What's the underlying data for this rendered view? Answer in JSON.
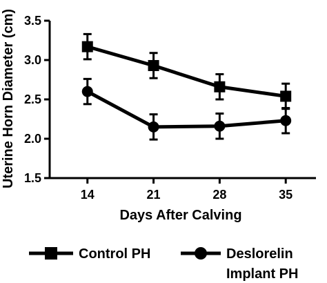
{
  "chart_data": {
    "type": "line",
    "x": [
      14,
      21,
      28,
      35
    ],
    "xlabel": "Days After Calving",
    "ylabel": "Uterine Horn Diameter (cm)",
    "ylim": [
      1.5,
      3.5
    ],
    "yticks": [
      "1.5",
      "2.0",
      "2.5",
      "3.0",
      "3.5"
    ],
    "xticks": [
      "14",
      "21",
      "28",
      "35"
    ],
    "grid": false,
    "legend_position": "bottom",
    "series": [
      {
        "name": "Control PH",
        "marker": "square",
        "values": [
          3.17,
          2.93,
          2.66,
          2.54
        ],
        "error": [
          0.16,
          0.16,
          0.16,
          0.16
        ]
      },
      {
        "name_line1": "Deslorelin",
        "name_line2": "Implant PH",
        "marker": "circle",
        "values": [
          2.6,
          2.15,
          2.16,
          2.23
        ],
        "error": [
          0.16,
          0.16,
          0.16,
          0.16
        ]
      }
    ],
    "line_color": "#000000"
  }
}
